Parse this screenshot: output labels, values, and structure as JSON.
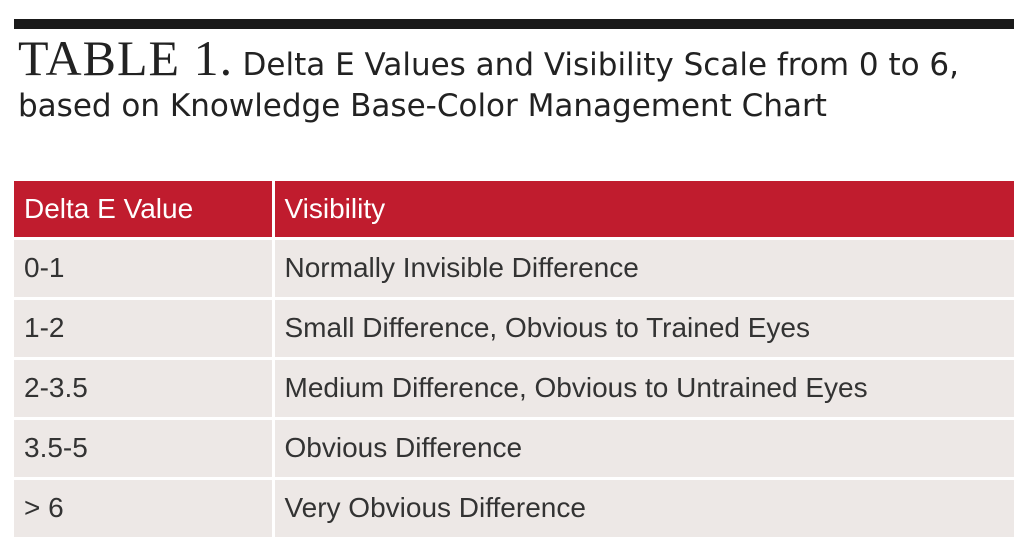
{
  "caption": {
    "label": "TABLE 1.",
    "description": "Delta E Values and Visibility Scale from 0 to 6, based on Knowledge Base-Color Management Chart"
  },
  "table": {
    "headers": [
      "Delta E Value",
      "Visibility"
    ],
    "rows": [
      [
        "0-1",
        "Normally Invisible Difference"
      ],
      [
        "1-2",
        "Small Difference, Obvious to Trained Eyes"
      ],
      [
        "2-3.5",
        "Medium Difference, Obvious to Untrained Eyes"
      ],
      [
        "3.5-5",
        "Obvious Difference"
      ],
      [
        "> 6",
        "Very Obvious Difference"
      ]
    ]
  },
  "colors": {
    "header_background": "#c01c2e",
    "row_background": "#ede8e6",
    "rule": "#1a1a1a"
  }
}
